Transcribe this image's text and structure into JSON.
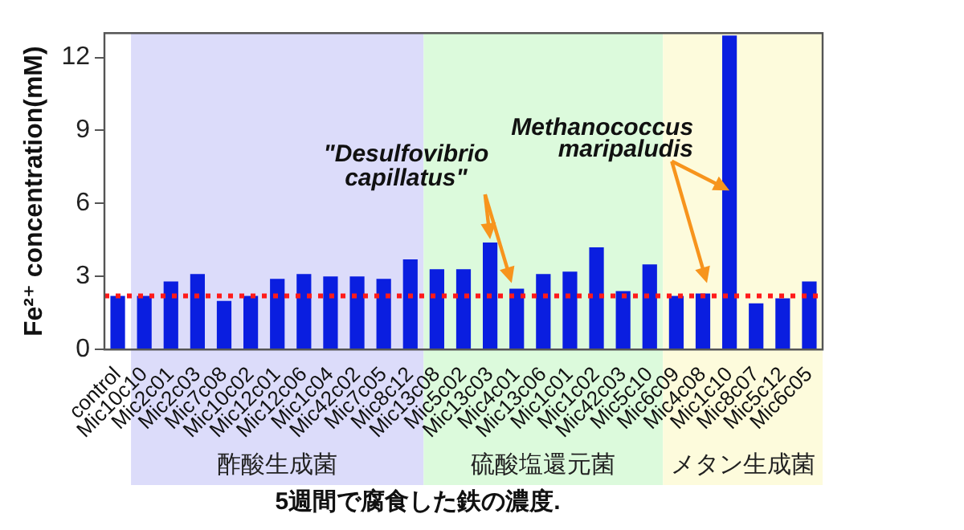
{
  "chart_data": {
    "type": "bar",
    "title": "5週間で腐食した鉄の濃度.",
    "ylabel": "Fe²⁺ concentration(mM)",
    "categories": [
      "control",
      "Mic10c10",
      "Mic2c01",
      "Mic2c03",
      "Mic7c08",
      "Mic10c02",
      "Mic12c01",
      "Mic12c06",
      "Mic1c04",
      "Mic42c02",
      "Mic7c05",
      "Mic8c12",
      "Mic13c08",
      "Mic5c02",
      "Mic13c03",
      "Mic4c01",
      "Mic13c06",
      "Mic1c01",
      "Mic1c02",
      "Mic42c03",
      "Mic5c10",
      "Mic6c09",
      "Mic4c08",
      "Mic1c10",
      "Mic8c07",
      "Mic5c12",
      "Mic6c05"
    ],
    "values": [
      2.2,
      2.2,
      2.8,
      3.1,
      2.0,
      2.2,
      2.9,
      3.1,
      3.0,
      3.0,
      2.9,
      3.7,
      3.3,
      3.3,
      4.4,
      2.5,
      3.1,
      3.2,
      4.2,
      2.4,
      3.5,
      2.2,
      2.3,
      12.9,
      1.9,
      2.1,
      2.8
    ],
    "color": "#0a1ee0",
    "ylim": [
      0,
      13
    ],
    "yticks": [
      0,
      3,
      6,
      9,
      12
    ],
    "legend": false,
    "ref_lines": [
      {
        "axis": "y",
        "value": 2.2,
        "color": "#ff1a1a",
        "line_style": "dotted"
      }
    ],
    "bands": [
      {
        "axis": "x",
        "from": "Mic10c10",
        "to": "Mic8c12",
        "label": "酢酸生成菌",
        "color": "#dcdcfa"
      },
      {
        "axis": "x",
        "from": "Mic13c08",
        "to": "Mic5c10",
        "label": "硫酸塩還元菌",
        "color": "#dcfadc"
      },
      {
        "axis": "x",
        "from": "Mic6c09",
        "to": "Mic6c05",
        "label": "メタン生成菌",
        "color": "#fdfbdc"
      }
    ],
    "annotations": [
      {
        "text": "\"Desulfovibrio capillatus\"",
        "x": "Mic13c03",
        "y": 4.4
      },
      {
        "text": "Methanococcus maripaludis",
        "x": "Mic1c10",
        "y": 6.4
      }
    ]
  }
}
